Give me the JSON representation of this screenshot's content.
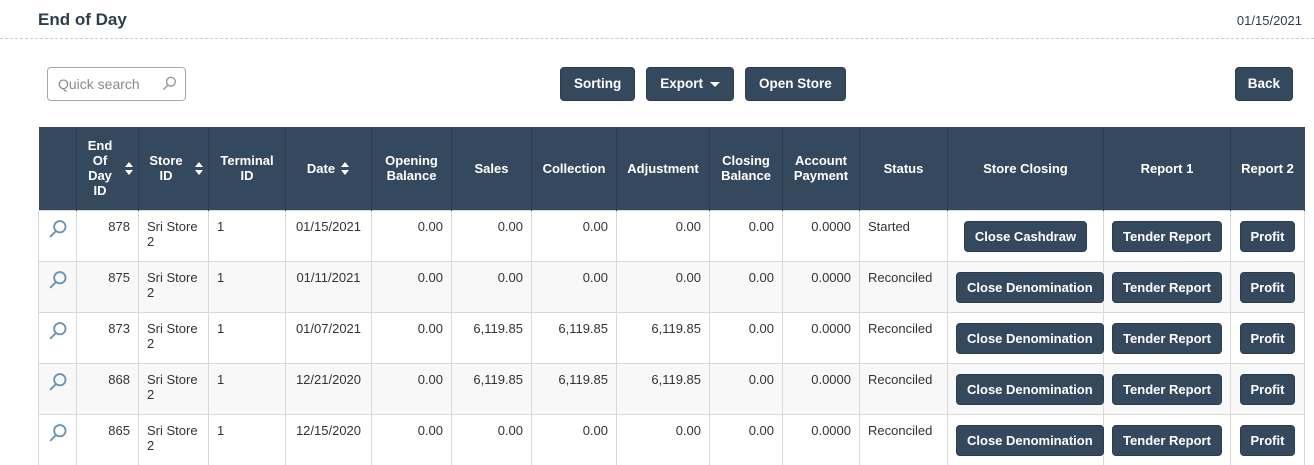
{
  "page": {
    "title": "End of Day",
    "date": "01/15/2021"
  },
  "toolbar": {
    "search_placeholder": "Quick search",
    "sorting_label": "Sorting",
    "export_label": "Export",
    "open_store_label": "Open Store",
    "back_label": "Back"
  },
  "colors": {
    "accent": "#35495e",
    "accent_border": "#2b3c4e",
    "magnifier_icon": "#6a93b2",
    "row_stripe": "#f8f8f8"
  },
  "table": {
    "columns": [
      {
        "key": "detail",
        "label": "",
        "type": "icon",
        "sortable": false
      },
      {
        "key": "end_of_day_id",
        "label": "End Of Day ID",
        "align": "right",
        "sortable": true
      },
      {
        "key": "store_id",
        "label": "Store ID",
        "align": "left",
        "sortable": true
      },
      {
        "key": "terminal_id",
        "label": "Terminal ID",
        "align": "left",
        "sortable": false
      },
      {
        "key": "date",
        "label": "Date",
        "align": "center",
        "sortable": true
      },
      {
        "key": "opening_balance",
        "label": "Opening Balance",
        "align": "right",
        "sortable": false
      },
      {
        "key": "sales",
        "label": "Sales",
        "align": "right",
        "sortable": false
      },
      {
        "key": "collection",
        "label": "Collection",
        "align": "right",
        "sortable": false
      },
      {
        "key": "adjustment",
        "label": "Adjustment",
        "align": "right",
        "sortable": false
      },
      {
        "key": "closing_balance",
        "label": "Closing Balance",
        "align": "right",
        "sortable": false
      },
      {
        "key": "account_payment",
        "label": "Account Payment",
        "align": "right",
        "sortable": false
      },
      {
        "key": "status",
        "label": "Status",
        "align": "left",
        "sortable": false
      },
      {
        "key": "store_closing",
        "label": "Store Closing",
        "type": "button",
        "sortable": false
      },
      {
        "key": "report1",
        "label": "Report 1",
        "type": "button",
        "sortable": false
      },
      {
        "key": "report2",
        "label": "Report 2",
        "type": "button",
        "sortable": false
      }
    ],
    "rows": [
      {
        "end_of_day_id": "878",
        "store_id": "Sri Store 2",
        "terminal_id": "1",
        "date": "01/15/2021",
        "opening_balance": "0.00",
        "sales": "0.00",
        "collection": "0.00",
        "adjustment": "0.00",
        "closing_balance": "0.00",
        "account_payment": "0.0000",
        "status": "Started",
        "store_closing": "Close Cashdraw",
        "report1": "Tender Report",
        "report2": "Profit"
      },
      {
        "end_of_day_id": "875",
        "store_id": "Sri Store 2",
        "terminal_id": "1",
        "date": "01/11/2021",
        "opening_balance": "0.00",
        "sales": "0.00",
        "collection": "0.00",
        "adjustment": "0.00",
        "closing_balance": "0.00",
        "account_payment": "0.0000",
        "status": "Reconciled",
        "store_closing": "Close Denomination",
        "report1": "Tender Report",
        "report2": "Profit"
      },
      {
        "end_of_day_id": "873",
        "store_id": "Sri Store 2",
        "terminal_id": "1",
        "date": "01/07/2021",
        "opening_balance": "0.00",
        "sales": "6,119.85",
        "collection": "6,119.85",
        "adjustment": "6,119.85",
        "closing_balance": "0.00",
        "account_payment": "0.0000",
        "status": "Reconciled",
        "store_closing": "Close Denomination",
        "report1": "Tender Report",
        "report2": "Profit"
      },
      {
        "end_of_day_id": "868",
        "store_id": "Sri Store 2",
        "terminal_id": "1",
        "date": "12/21/2020",
        "opening_balance": "0.00",
        "sales": "6,119.85",
        "collection": "6,119.85",
        "adjustment": "6,119.85",
        "closing_balance": "0.00",
        "account_payment": "0.0000",
        "status": "Reconciled",
        "store_closing": "Close Denomination",
        "report1": "Tender Report",
        "report2": "Profit"
      },
      {
        "end_of_day_id": "865",
        "store_id": "Sri Store 2",
        "terminal_id": "1",
        "date": "12/15/2020",
        "opening_balance": "0.00",
        "sales": "0.00",
        "collection": "0.00",
        "adjustment": "0.00",
        "closing_balance": "0.00",
        "account_payment": "0.0000",
        "status": "Reconciled",
        "store_closing": "Close Denomination",
        "report1": "Tender Report",
        "report2": "Profit"
      }
    ]
  }
}
